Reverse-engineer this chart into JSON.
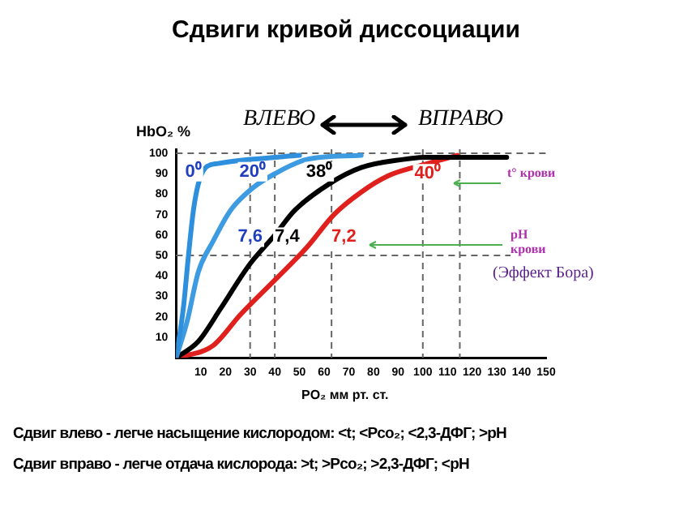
{
  "chart_data": {
    "type": "line",
    "title": "Сдвиги кривой диссоциации",
    "xlabel": "PO₂  мм рт. ст.",
    "ylabel": "HbO₂  %",
    "x": [
      0,
      3,
      5,
      7,
      9,
      12,
      17,
      30,
      50
    ],
    "series": [
      {
        "color": "#2e8fdc",
        "values": [
          0,
          25,
          50,
          72,
          85,
          93,
          95,
          97,
          99
        ]
      },
      {
        "color": "#3d9be2",
        "x": [
          0,
          4.5,
          9,
          15,
          22,
          31,
          40,
          53,
          75
        ],
        "values": [
          0,
          18,
          42,
          57,
          72,
          83,
          90,
          97,
          99
        ]
      },
      {
        "color": "#000000",
        "x": [
          0,
          9,
          18,
          26,
          30,
          40,
          48,
          62,
          75,
          92,
          101,
          134
        ],
        "values": [
          0,
          8,
          24,
          39,
          46,
          60,
          72,
          85,
          93,
          97,
          98,
          98
        ]
      },
      {
        "color": "#e0201c",
        "x": [
          0,
          15,
          26,
          40,
          53,
          64,
          75,
          86,
          99,
          108,
          114
        ],
        "values": [
          0,
          6,
          21,
          38,
          54,
          70,
          81,
          89,
          94,
          97,
          99
        ]
      }
    ],
    "xlim": [
      0,
      150
    ],
    "xticks": [
      10,
      20,
      30,
      40,
      50,
      60,
      70,
      80,
      90,
      100,
      110,
      120,
      130,
      140,
      150
    ],
    "ylim": [
      0,
      102
    ],
    "yticks": [
      10,
      20,
      30,
      40,
      50,
      60,
      70,
      80,
      90,
      100
    ],
    "ref_lines": [
      {
        "axis": "x",
        "value": 30,
        "line_style": "dashed",
        "color": "#666666"
      },
      {
        "axis": "x",
        "value": 40,
        "line_style": "dashed",
        "color": "#666666"
      },
      {
        "axis": "x",
        "value": 63,
        "line_style": "dashed",
        "color": "#666666"
      },
      {
        "axis": "x",
        "value": 100,
        "line_style": "dashed",
        "color": "#666666"
      },
      {
        "axis": "x",
        "value": 115,
        "line_style": "dashed",
        "color": "#666666"
      },
      {
        "axis": "y",
        "value": 50,
        "line_style": "dashed",
        "color": "#666666"
      },
      {
        "axis": "y",
        "value": 100,
        "line_style": "dashed",
        "color": "#666666"
      }
    ],
    "annotations": [
      {
        "text": "0⁰",
        "x": 7,
        "y": 91
      },
      {
        "text": "20⁰",
        "x": 31,
        "y": 91
      },
      {
        "text": "38⁰",
        "x": 58,
        "y": 91
      },
      {
        "text": "40⁰",
        "x": 102,
        "y": 90
      },
      {
        "text": "7,6",
        "x": 30,
        "y": 59
      },
      {
        "text": "7,4",
        "x": 45,
        "y": 59
      },
      {
        "text": "7,2",
        "x": 68,
        "y": 59
      },
      "ВЛЕВО",
      "ВПРАВО",
      "t° крови",
      "pH",
      "крови",
      "(Эффект Бора)",
      "Сдвиг влево - легче насыщение кислородом: <t; <Pco₂; <2,3-ДФГ; >pH",
      "Сдвиг вправо - легче отдача кислорода: >t; >Pco₂; >2,3-ДФГ; <pH"
    ],
    "legend": false,
    "marker": "none",
    "line_style": "solid",
    "grid": false
  }
}
